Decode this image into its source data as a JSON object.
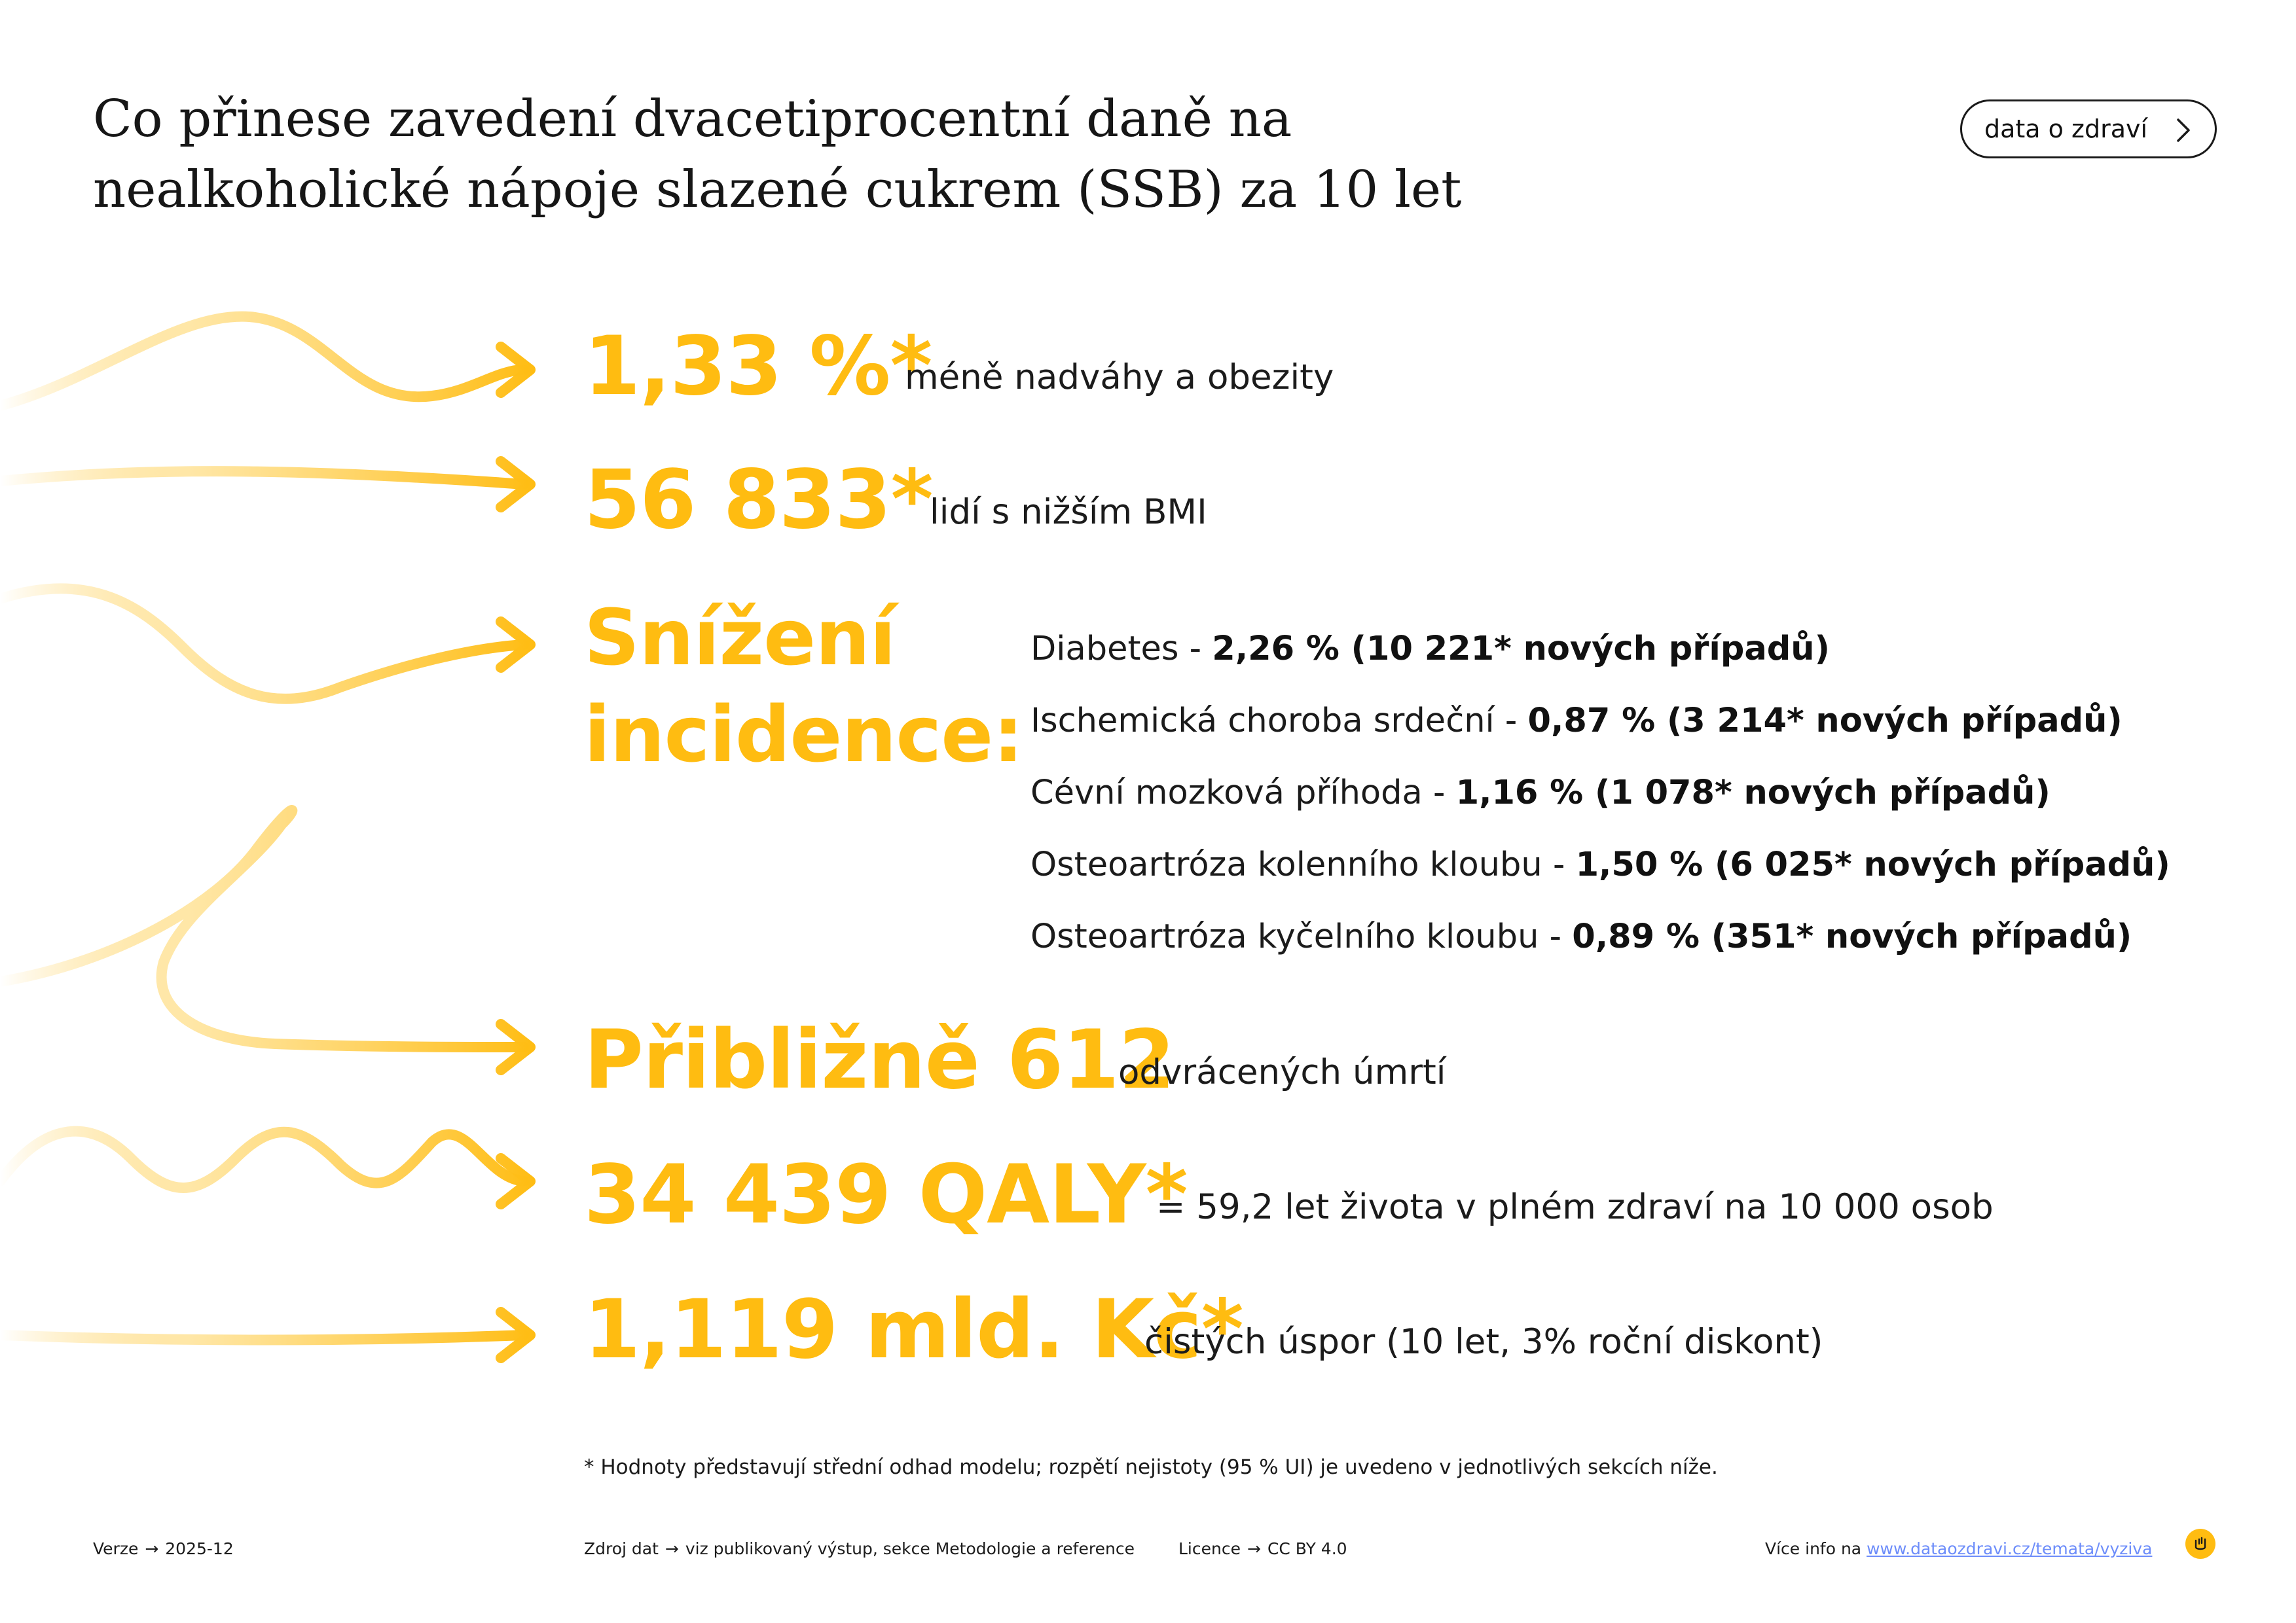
{
  "header": {
    "title": "Co přinese zavedení dvacetiprocentní daně na nealkoholické nápoje slazené cukrem (SSB) za 10 let",
    "badge_label": "data o zdraví"
  },
  "stats": [
    {
      "value": "1,33 %*",
      "label": "méně nadváhy a obezity"
    },
    {
      "value": "56 833*",
      "label": "lidí s nižším BMI"
    },
    {
      "value": "Přibližně 612",
      "label": "odvrácených úmrtí"
    },
    {
      "value": "34 439 QALY*",
      "label": "= 59,2 let života v plném zdraví na 10 000 osob"
    },
    {
      "value": "1,119 mld. Kč*",
      "label": "čistých úspor (10 let, 3% roční diskont)"
    }
  ],
  "incidence": {
    "heading_line1": "Snížení",
    "heading_line2": "incidence:",
    "items": [
      {
        "name": "Diabetes - ",
        "value": "2,26 % (10 221* nových případů)"
      },
      {
        "name": "Ischemická choroba srdeční - ",
        "value": "0,87 % (3 214* nových případů)"
      },
      {
        "name": "Cévní mozková příhoda - ",
        "value": "1,16 % (1 078* nových případů)"
      },
      {
        "name": "Osteoartróza kolenního kloubu - ",
        "value": "1,50 % (6 025* nových případů)"
      },
      {
        "name": "Osteoartróza kyčelního kloubu - ",
        "value": "0,89 % (351* nových případů)"
      }
    ]
  },
  "footnote": "* Hodnoty představují střední odhad modelu; rozpětí nejistoty (95 % UI) je uvedeno v jednotlivých sekcích níže.",
  "footer": {
    "version_label": "Verze",
    "version_value": "2025-12",
    "source_label": "Zdroj dat",
    "source_value": "viz publikovaný výstup, sekce Metodologie a reference",
    "license_label": "Licence",
    "license_value": "CC BY 4.0",
    "more_info_label": "Více info na",
    "more_info_link": "www.dataozdravi.cz/temata/vyziva",
    "arrow": "→"
  },
  "colors": {
    "accent": "#ffbc11",
    "accent_light": "#ffe7a3",
    "text": "#141414",
    "link": "#6d8dfa"
  },
  "icons": {
    "badge": "chevron-right-icon",
    "logo": "brand-logo-icon",
    "decor": "arrow-squiggle-icon"
  }
}
